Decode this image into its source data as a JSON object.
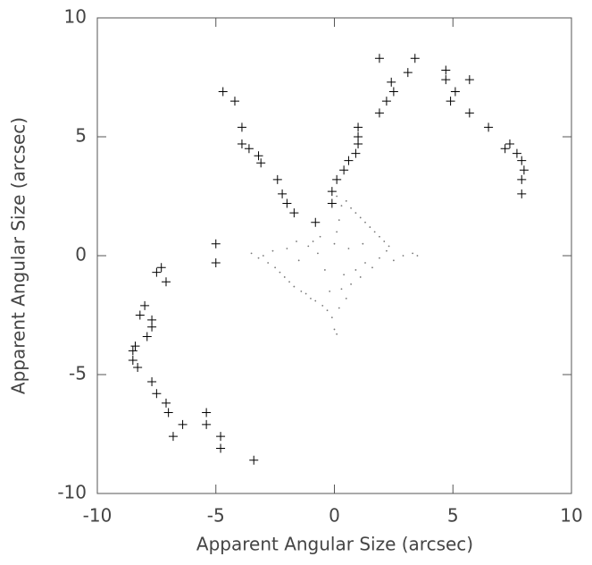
{
  "chart_data": {
    "type": "scatter",
    "xlabel": "Apparent Angular Size (arcsec)",
    "ylabel": "Apparent Angular Size (arcsec)",
    "xlim": [
      -10,
      10
    ],
    "ylim": [
      -10,
      10
    ],
    "xticks": [
      -10,
      -5,
      0,
      5,
      10
    ],
    "yticks": [
      -10,
      -5,
      0,
      5,
      10
    ],
    "series": [
      {
        "marker": "plus",
        "color": "#000000",
        "x": [
          -4.7,
          -4.2,
          -3.9,
          -3.9,
          -3.6,
          -3.2,
          -3.1,
          -2.4,
          -2.2,
          -2.0,
          -1.7,
          -0.8,
          -0.1,
          -0.1,
          0.1,
          0.4,
          0.6,
          0.9,
          1.0,
          1.0,
          1.0,
          1.9,
          2.2,
          2.4,
          2.5,
          1.9,
          3.1,
          3.4,
          4.7,
          4.7,
          4.9,
          5.1,
          5.7,
          5.7,
          6.5,
          7.2,
          7.4,
          7.7,
          7.9,
          8.0,
          7.9,
          7.9,
          -5.0,
          -5.0,
          -7.3,
          -7.5,
          -7.1,
          -8.0,
          -8.2,
          -7.7,
          -7.7,
          -7.9,
          -8.4,
          -8.5,
          -8.5,
          -8.3,
          -7.7,
          -7.5,
          -7.1,
          -7.0,
          -6.4,
          -6.8,
          -5.4,
          -5.4,
          -4.8,
          -4.8,
          -3.4
        ],
        "y": [
          6.9,
          6.5,
          5.4,
          4.7,
          4.5,
          4.2,
          3.9,
          3.2,
          2.6,
          2.2,
          1.8,
          1.4,
          2.7,
          2.2,
          3.2,
          3.6,
          4.0,
          4.3,
          4.7,
          5.4,
          5.0,
          6.0,
          6.5,
          7.3,
          6.9,
          8.3,
          7.7,
          8.3,
          7.4,
          7.8,
          6.5,
          6.9,
          7.4,
          6.0,
          5.4,
          4.5,
          4.7,
          4.3,
          4.0,
          3.6,
          3.2,
          2.6,
          0.5,
          -0.3,
          -0.5,
          -0.7,
          -1.1,
          -2.1,
          -2.5,
          -2.7,
          -3.0,
          -3.4,
          -3.8,
          -4.0,
          -4.4,
          -4.7,
          -5.3,
          -5.8,
          -6.2,
          -6.6,
          -7.1,
          -7.6,
          -6.6,
          -7.1,
          -7.6,
          -8.1,
          -8.6
        ]
      },
      {
        "marker": "dot",
        "color": "#777777",
        "x": [
          -3.5,
          -3.2,
          -3,
          -2.8,
          -2.6,
          -2.5,
          -2.3,
          -2.1,
          -2,
          -1.9,
          -1.7,
          -1.5,
          -1.4,
          -1.2,
          -1.1,
          -1,
          -0.8,
          -0.7,
          -0.5,
          -0.4,
          -0.3,
          -0.2,
          -0.1,
          0,
          0.1,
          0.2,
          0.3,
          0.4,
          0.5,
          0.7,
          0.9,
          1.1,
          1.3,
          1.6,
          1.9,
          2.2,
          2.5,
          2.9,
          3.3,
          3.5,
          0,
          0.1,
          0.2,
          0.3,
          0.1,
          0.5,
          0.7,
          0.9,
          1.1,
          1.3,
          1.5,
          1.7,
          1.9,
          2.1,
          2.3,
          -0.6,
          -0.9,
          0.6,
          1.2,
          -1.6
        ],
        "y": [
          0.1,
          -0.1,
          0,
          -0.3,
          0.2,
          -0.5,
          -0.7,
          -0.9,
          0.3,
          -1.1,
          -1.3,
          -0.2,
          -1.5,
          -1.6,
          0.4,
          -1.8,
          -1.9,
          0.1,
          -2.1,
          -0.6,
          -2.3,
          -1.5,
          -2.6,
          -3.1,
          -3.3,
          -2.2,
          -1.4,
          -0.8,
          -1.8,
          -1.2,
          -0.6,
          -0.9,
          -0.3,
          -0.5,
          -0.1,
          0.2,
          -0.2,
          0,
          0.1,
          0,
          0.5,
          1,
          1.5,
          2.1,
          2.5,
          2.3,
          2,
          1.8,
          1.6,
          1.4,
          1.2,
          1,
          0.8,
          0.6,
          0.4,
          0.8,
          0.6,
          0.3,
          0.5,
          0.6
        ]
      }
    ]
  }
}
